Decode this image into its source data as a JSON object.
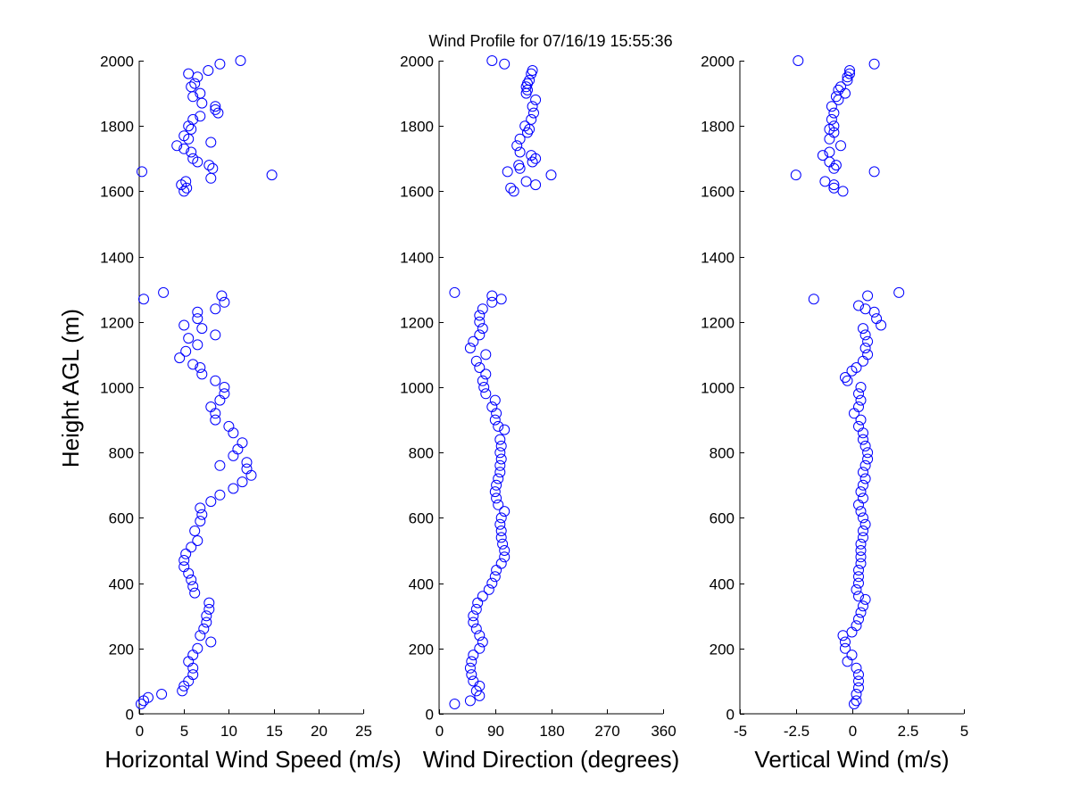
{
  "chart_data": {
    "title": "Wind Profile for  07/16/19 15:55:36",
    "ylabel": "Height AGL (m)",
    "ylim": [
      0,
      2000
    ],
    "yticks": [
      0,
      200,
      400,
      600,
      800,
      1000,
      1200,
      1400,
      1600,
      1800,
      2000
    ],
    "marker_color": "#0000ff",
    "panels": [
      {
        "type": "scatter",
        "xlabel": "Horizontal Wind Speed (m/s)",
        "xlim": [
          0,
          25
        ],
        "xticks": [
          "0",
          "5",
          "10",
          "15",
          "20",
          "25"
        ],
        "xtick_values": [
          0,
          5,
          10,
          15,
          20,
          25
        ],
        "points": [
          [
            0.2,
            30
          ],
          [
            0.5,
            40
          ],
          [
            1,
            50
          ],
          [
            2.5,
            60
          ],
          [
            4.8,
            70
          ],
          [
            5,
            85
          ],
          [
            5.5,
            100
          ],
          [
            6,
            120
          ],
          [
            6,
            140
          ],
          [
            5.5,
            160
          ],
          [
            6,
            180
          ],
          [
            6.5,
            200
          ],
          [
            8,
            220
          ],
          [
            6.8,
            240
          ],
          [
            7.2,
            260
          ],
          [
            7.5,
            280
          ],
          [
            7.5,
            300
          ],
          [
            7.8,
            320
          ],
          [
            7.8,
            340
          ],
          [
            6.2,
            370
          ],
          [
            6,
            390
          ],
          [
            5.8,
            410
          ],
          [
            5.5,
            430
          ],
          [
            5,
            450
          ],
          [
            5,
            470
          ],
          [
            5.2,
            490
          ],
          [
            5.8,
            510
          ],
          [
            6.5,
            530
          ],
          [
            6.2,
            560
          ],
          [
            6.8,
            590
          ],
          [
            7,
            610
          ],
          [
            6.8,
            630
          ],
          [
            8,
            650
          ],
          [
            9,
            670
          ],
          [
            10.5,
            690
          ],
          [
            11.5,
            710
          ],
          [
            12.5,
            730
          ],
          [
            12,
            750
          ],
          [
            9,
            760
          ],
          [
            12,
            770
          ],
          [
            10.5,
            790
          ],
          [
            11,
            810
          ],
          [
            11.5,
            830
          ],
          [
            10.5,
            860
          ],
          [
            10,
            880
          ],
          [
            8.5,
            900
          ],
          [
            8.5,
            920
          ],
          [
            8,
            940
          ],
          [
            9,
            960
          ],
          [
            9.5,
            980
          ],
          [
            9.5,
            1000
          ],
          [
            8.5,
            1020
          ],
          [
            7,
            1040
          ],
          [
            6.8,
            1060
          ],
          [
            6,
            1070
          ],
          [
            4.5,
            1090
          ],
          [
            5.2,
            1110
          ],
          [
            6.5,
            1130
          ],
          [
            5.5,
            1150
          ],
          [
            8.5,
            1160
          ],
          [
            7,
            1180
          ],
          [
            5,
            1190
          ],
          [
            6.5,
            1210
          ],
          [
            6.5,
            1230
          ],
          [
            8.5,
            1240
          ],
          [
            9.5,
            1260
          ],
          [
            0.5,
            1270
          ],
          [
            9.2,
            1280
          ],
          [
            2.7,
            1290
          ],
          [
            5,
            1600
          ],
          [
            5.3,
            1610
          ],
          [
            4.7,
            1620
          ],
          [
            5.2,
            1630
          ],
          [
            8,
            1640
          ],
          [
            14.8,
            1650
          ],
          [
            0.3,
            1660
          ],
          [
            8.2,
            1670
          ],
          [
            7.8,
            1680
          ],
          [
            6.5,
            1690
          ],
          [
            6,
            1700
          ],
          [
            5.8,
            1720
          ],
          [
            5,
            1730
          ],
          [
            4.2,
            1740
          ],
          [
            8,
            1750
          ],
          [
            5.5,
            1760
          ],
          [
            5,
            1770
          ],
          [
            5.8,
            1790
          ],
          [
            5.5,
            1800
          ],
          [
            6,
            1820
          ],
          [
            6.8,
            1830
          ],
          [
            8.8,
            1840
          ],
          [
            8.5,
            1850
          ],
          [
            8.5,
            1860
          ],
          [
            7,
            1870
          ],
          [
            6,
            1890
          ],
          [
            6.8,
            1900
          ],
          [
            5.8,
            1920
          ],
          [
            6.2,
            1930
          ],
          [
            6.5,
            1950
          ],
          [
            5.5,
            1960
          ],
          [
            7.7,
            1970
          ],
          [
            9,
            1990
          ],
          [
            11.3,
            2000
          ]
        ]
      },
      {
        "type": "scatter",
        "xlabel": "Wind Direction (degrees)",
        "xlim": [
          0,
          360
        ],
        "xticks": [
          "0",
          "90",
          "180",
          "270",
          "360"
        ],
        "xtick_values": [
          0,
          90,
          180,
          270,
          360
        ],
        "points": [
          [
            25,
            30
          ],
          [
            50,
            40
          ],
          [
            65,
            55
          ],
          [
            60,
            70
          ],
          [
            65,
            85
          ],
          [
            55,
            100
          ],
          [
            52,
            120
          ],
          [
            50,
            140
          ],
          [
            52,
            160
          ],
          [
            55,
            180
          ],
          [
            65,
            200
          ],
          [
            70,
            220
          ],
          [
            65,
            240
          ],
          [
            60,
            260
          ],
          [
            55,
            280
          ],
          [
            55,
            300
          ],
          [
            60,
            320
          ],
          [
            62,
            340
          ],
          [
            70,
            360
          ],
          [
            80,
            380
          ],
          [
            85,
            400
          ],
          [
            90,
            420
          ],
          [
            92,
            440
          ],
          [
            100,
            460
          ],
          [
            105,
            480
          ],
          [
            105,
            500
          ],
          [
            102,
            520
          ],
          [
            100,
            540
          ],
          [
            100,
            560
          ],
          [
            98,
            580
          ],
          [
            100,
            600
          ],
          [
            105,
            620
          ],
          [
            95,
            640
          ],
          [
            92,
            660
          ],
          [
            90,
            680
          ],
          [
            92,
            700
          ],
          [
            95,
            720
          ],
          [
            98,
            740
          ],
          [
            98,
            760
          ],
          [
            100,
            780
          ],
          [
            98,
            800
          ],
          [
            100,
            820
          ],
          [
            98,
            840
          ],
          [
            105,
            870
          ],
          [
            95,
            880
          ],
          [
            90,
            900
          ],
          [
            92,
            920
          ],
          [
            85,
            940
          ],
          [
            90,
            960
          ],
          [
            75,
            980
          ],
          [
            72,
            1000
          ],
          [
            70,
            1020
          ],
          [
            75,
            1040
          ],
          [
            65,
            1060
          ],
          [
            60,
            1080
          ],
          [
            75,
            1100
          ],
          [
            50,
            1120
          ],
          [
            55,
            1140
          ],
          [
            65,
            1160
          ],
          [
            70,
            1180
          ],
          [
            65,
            1200
          ],
          [
            65,
            1220
          ],
          [
            70,
            1240
          ],
          [
            85,
            1260
          ],
          [
            100,
            1270
          ],
          [
            85,
            1280
          ],
          [
            25,
            1290
          ],
          [
            120,
            1600
          ],
          [
            115,
            1610
          ],
          [
            155,
            1620
          ],
          [
            140,
            1630
          ],
          [
            180,
            1650
          ],
          [
            110,
            1660
          ],
          [
            130,
            1670
          ],
          [
            128,
            1680
          ],
          [
            150,
            1690
          ],
          [
            155,
            1700
          ],
          [
            148,
            1710
          ],
          [
            130,
            1720
          ],
          [
            125,
            1740
          ],
          [
            130,
            1760
          ],
          [
            142,
            1780
          ],
          [
            145,
            1790
          ],
          [
            138,
            1800
          ],
          [
            148,
            1820
          ],
          [
            152,
            1840
          ],
          [
            150,
            1860
          ],
          [
            155,
            1880
          ],
          [
            140,
            1900
          ],
          [
            142,
            1910
          ],
          [
            140,
            1920
          ],
          [
            142,
            1930
          ],
          [
            145,
            1940
          ],
          [
            148,
            1960
          ],
          [
            150,
            1970
          ],
          [
            105,
            1990
          ],
          [
            85,
            2000
          ]
        ]
      },
      {
        "type": "scatter",
        "xlabel": "Vertical Wind (m/s)",
        "xlim": [
          -5,
          5
        ],
        "xticks": [
          "-5",
          "-2.5",
          "0",
          "2.5",
          "5"
        ],
        "xtick_values": [
          -5,
          -2.5,
          0,
          2.5,
          5
        ],
        "points": [
          [
            0.1,
            30
          ],
          [
            0.2,
            40
          ],
          [
            0.2,
            60
          ],
          [
            0.3,
            80
          ],
          [
            0.3,
            100
          ],
          [
            0.3,
            120
          ],
          [
            0.2,
            140
          ],
          [
            -0.2,
            160
          ],
          [
            0,
            180
          ],
          [
            -0.3,
            200
          ],
          [
            -0.3,
            220
          ],
          [
            -0.4,
            240
          ],
          [
            0,
            250
          ],
          [
            0.2,
            270
          ],
          [
            0.3,
            290
          ],
          [
            0.4,
            310
          ],
          [
            0.5,
            330
          ],
          [
            0.6,
            350
          ],
          [
            0.3,
            360
          ],
          [
            0.2,
            380
          ],
          [
            0.3,
            400
          ],
          [
            0.3,
            420
          ],
          [
            0.3,
            440
          ],
          [
            0.4,
            460
          ],
          [
            0.4,
            480
          ],
          [
            0.4,
            500
          ],
          [
            0.4,
            520
          ],
          [
            0.5,
            540
          ],
          [
            0.5,
            560
          ],
          [
            0.6,
            580
          ],
          [
            0.5,
            600
          ],
          [
            0.4,
            620
          ],
          [
            0.3,
            640
          ],
          [
            0.5,
            660
          ],
          [
            0.4,
            680
          ],
          [
            0.5,
            700
          ],
          [
            0.6,
            720
          ],
          [
            0.5,
            740
          ],
          [
            0.6,
            760
          ],
          [
            0.7,
            780
          ],
          [
            0.7,
            800
          ],
          [
            0.6,
            820
          ],
          [
            0.5,
            840
          ],
          [
            0.5,
            860
          ],
          [
            0.3,
            880
          ],
          [
            0.4,
            900
          ],
          [
            0.1,
            920
          ],
          [
            0.3,
            940
          ],
          [
            0.4,
            960
          ],
          [
            0.3,
            980
          ],
          [
            0.4,
            1000
          ],
          [
            -0.2,
            1020
          ],
          [
            -0.3,
            1030
          ],
          [
            0,
            1050
          ],
          [
            0.2,
            1060
          ],
          [
            0.5,
            1080
          ],
          [
            0.7,
            1100
          ],
          [
            0.6,
            1120
          ],
          [
            0.7,
            1140
          ],
          [
            0.6,
            1160
          ],
          [
            0.5,
            1180
          ],
          [
            1.3,
            1190
          ],
          [
            1.1,
            1210
          ],
          [
            1,
            1230
          ],
          [
            0.6,
            1240
          ],
          [
            0.3,
            1250
          ],
          [
            -1.7,
            1270
          ],
          [
            0.7,
            1280
          ],
          [
            2.1,
            1290
          ],
          [
            -0.4,
            1600
          ],
          [
            -0.8,
            1610
          ],
          [
            -0.8,
            1620
          ],
          [
            -1.2,
            1630
          ],
          [
            1,
            1660
          ],
          [
            -2.5,
            1650
          ],
          [
            -0.8,
            1670
          ],
          [
            -0.7,
            1680
          ],
          [
            -1,
            1690
          ],
          [
            -1.3,
            1710
          ],
          [
            -1,
            1720
          ],
          [
            -0.5,
            1740
          ],
          [
            -1,
            1760
          ],
          [
            -0.8,
            1780
          ],
          [
            -1,
            1790
          ],
          [
            -0.8,
            1800
          ],
          [
            -0.9,
            1820
          ],
          [
            -0.8,
            1840
          ],
          [
            -0.9,
            1860
          ],
          [
            -0.6,
            1880
          ],
          [
            -0.7,
            1890
          ],
          [
            -0.3,
            1900
          ],
          [
            -0.6,
            1910
          ],
          [
            -0.5,
            1920
          ],
          [
            -0.2,
            1940
          ],
          [
            -0.2,
            1950
          ],
          [
            -0.1,
            1960
          ],
          [
            -0.1,
            1970
          ],
          [
            1,
            1990
          ],
          [
            -2.4,
            2000
          ]
        ]
      }
    ]
  }
}
